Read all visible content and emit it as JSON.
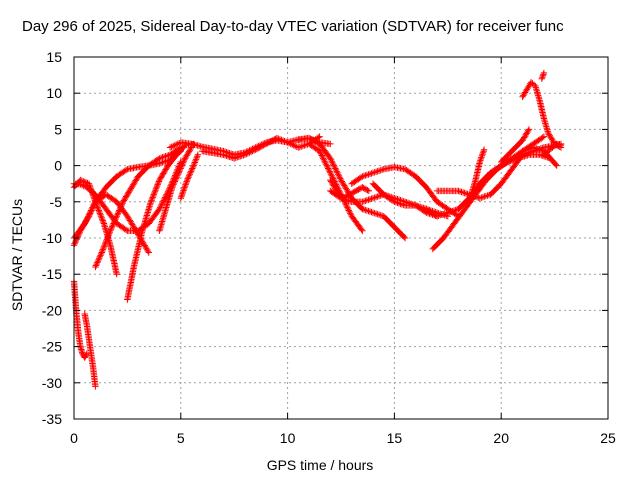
{
  "chart_data": {
    "type": "scatter",
    "title": "Day 296 of 2025, Sidereal Day-to-day VTEC variation (SDTVAR) for receiver func",
    "xlabel": "GPS time / hours",
    "ylabel": "SDTVAR / TECUs",
    "xlim": [
      0,
      25
    ],
    "ylim": [
      -35,
      15
    ],
    "xticks": [
      0,
      5,
      10,
      15,
      20,
      25
    ],
    "yticks": [
      -35,
      -30,
      -25,
      -20,
      -15,
      -10,
      -5,
      0,
      5,
      10,
      15
    ],
    "grid": true,
    "marker": "+",
    "color": "#ff0000",
    "series": [
      {
        "name": "s1",
        "x": [
          0.0,
          0.1,
          0.2,
          0.3,
          0.4,
          0.5,
          0.6
        ],
        "y": [
          -16,
          -20,
          -23,
          -25,
          -26,
          -26.5,
          -26
        ]
      },
      {
        "name": "s2",
        "x": [
          0.5,
          0.6,
          0.7,
          0.8,
          0.9,
          1.0
        ],
        "y": [
          -20.5,
          -22,
          -24,
          -26,
          -28,
          -30.5
        ]
      },
      {
        "name": "s3",
        "x": [
          0.0,
          0.3,
          0.7,
          1.0,
          1.4,
          1.7,
          2.0
        ],
        "y": [
          -3,
          -2,
          -2.5,
          -5,
          -8,
          -11,
          -15
        ]
      },
      {
        "name": "s4",
        "x": [
          0.0,
          0.5,
          1.0,
          1.5,
          2.0,
          2.5,
          3.0,
          3.5
        ],
        "y": [
          -10,
          -8,
          -5,
          -4,
          -5,
          -7,
          -9.5,
          -12
        ]
      },
      {
        "name": "s5",
        "x": [
          0.0,
          0.3,
          0.6,
          1.0,
          1.5,
          2.0,
          2.5,
          3.0,
          3.5,
          4.0,
          4.5,
          5.0
        ],
        "y": [
          -2.5,
          -2.6,
          -3,
          -4,
          -6,
          -8,
          -9,
          -9,
          -8,
          -6,
          -3,
          0.5
        ]
      },
      {
        "name": "s6",
        "x": [
          0.0,
          0.3,
          0.7,
          1.0,
          1.5,
          2.0,
          2.5,
          3.0,
          3.5,
          4.0,
          4.5,
          5.0
        ],
        "y": [
          -11,
          -9,
          -7,
          -5,
          -3,
          -1.5,
          -0.5,
          -0.2,
          0,
          0.3,
          0.8,
          2
        ]
      },
      {
        "name": "s7",
        "x": [
          1.0,
          1.3,
          1.7,
          2.0,
          2.3,
          2.7,
          3.0,
          3.5,
          4.0,
          4.5,
          5.0
        ],
        "y": [
          -14,
          -12,
          -9,
          -7,
          -5,
          -3,
          -1.5,
          0,
          1,
          1.5,
          2.5
        ]
      },
      {
        "name": "s8",
        "x": [
          2.5,
          2.8,
          3.2,
          3.6,
          4.0,
          4.4,
          4.8,
          5.2,
          5.6
        ],
        "y": [
          -18.5,
          -14,
          -9,
          -5,
          -2,
          0,
          1.5,
          2.8,
          3
        ]
      },
      {
        "name": "s9",
        "x": [
          4.0,
          4.3,
          4.6,
          4.9,
          5.2,
          5.5
        ],
        "y": [
          -9,
          -6,
          -3,
          -1,
          1,
          2.5
        ]
      },
      {
        "name": "s10",
        "x": [
          5.0,
          5.3,
          5.6,
          5.8
        ],
        "y": [
          -4.5,
          -2,
          0,
          1.5
        ]
      },
      {
        "name": "s11",
        "x": [
          4.5,
          5.0,
          5.5,
          6.0,
          6.5,
          7.0,
          7.5,
          8.0,
          8.5,
          9.0,
          9.5,
          10.0,
          10.5,
          11.0,
          11.5,
          12.0
        ],
        "y": [
          2.5,
          3.2,
          3.0,
          2.6,
          2.3,
          2.0,
          1.5,
          1.8,
          2.5,
          3.2,
          3.5,
          3.2,
          3.6,
          3.8,
          3.2,
          3.0
        ]
      },
      {
        "name": "s12",
        "x": [
          6.0,
          7.0,
          7.5,
          8.0,
          8.5,
          9.0,
          9.5,
          10.0,
          10.5,
          11.0,
          11.5
        ],
        "y": [
          2.0,
          1.5,
          1.0,
          1.5,
          2.2,
          3.0,
          3.8,
          3.2,
          2.5,
          3.0,
          4.0
        ]
      },
      {
        "name": "s13",
        "x": [
          10.5,
          11.0,
          11.5,
          12.0,
          12.5,
          13.0,
          13.5,
          14.0,
          14.5,
          15.0,
          15.5
        ],
        "y": [
          3.5,
          3.8,
          3.0,
          1.0,
          -2.0,
          -4.5,
          -6.0,
          -6.5,
          -7.0,
          -8.5,
          -10.0
        ]
      },
      {
        "name": "s14",
        "x": [
          11.0,
          11.5,
          12.0,
          12.5,
          13.0,
          13.5
        ],
        "y": [
          3.0,
          2.0,
          -1.0,
          -4.0,
          -7.0,
          -9.0
        ]
      },
      {
        "name": "s15",
        "x": [
          12.0,
          12.3,
          12.6,
          12.9,
          13.2,
          13.5,
          13.8
        ],
        "y": [
          -2.0,
          -3.5,
          -4.5,
          -4.0,
          -3.5,
          -3.0,
          -3.5
        ]
      },
      {
        "name": "s16",
        "x": [
          12.0,
          12.5,
          13.0,
          13.5,
          14.0,
          14.5,
          15.0,
          15.5,
          16.0,
          16.5,
          17.0
        ],
        "y": [
          -3.5,
          -4.5,
          -5.0,
          -5.0,
          -4.5,
          -4.0,
          -4.5,
          -5.0,
          -5.5,
          -6.5,
          -7.0
        ]
      },
      {
        "name": "s17",
        "x": [
          13.0,
          13.5,
          14.0,
          14.5,
          15.0,
          15.5,
          16.0,
          16.5,
          17.0,
          17.5,
          18.0
        ],
        "y": [
          -2.5,
          -1.5,
          -1.0,
          -0.5,
          -0.2,
          -0.5,
          -1.5,
          -3.0,
          -5.0,
          -6.0,
          -7.0
        ]
      },
      {
        "name": "s18",
        "x": [
          14.0,
          14.5,
          15.0,
          15.5,
          16.0,
          16.5,
          17.0,
          17.5
        ],
        "y": [
          -2.5,
          -4.0,
          -5.0,
          -5.5,
          -5.5,
          -6.0,
          -6.5,
          -7.0
        ]
      },
      {
        "name": "s19",
        "x": [
          16.5,
          17.0,
          17.5,
          18.0,
          18.5,
          19.0,
          19.5,
          20.0,
          20.5,
          21.0,
          21.5,
          22.0,
          22.5,
          22.8
        ],
        "y": [
          -6.0,
          -7.0,
          -6.5,
          -6.0,
          -4.5,
          -2.5,
          -1.0,
          0.0,
          0.8,
          1.5,
          2.0,
          2.5,
          2.8,
          3.0
        ]
      },
      {
        "name": "s20",
        "x": [
          16.8,
          17.3,
          17.8,
          18.3,
          18.8,
          19.3,
          19.8,
          20.3,
          20.8,
          21.3,
          21.8,
          22.3
        ],
        "y": [
          -11.5,
          -10.0,
          -8.0,
          -6.0,
          -4.0,
          -2.0,
          -0.5,
          0.5,
          1.0,
          1.5,
          1.5,
          1.0
        ]
      },
      {
        "name": "s21",
        "x": [
          17.0,
          17.5,
          18.0,
          18.5,
          19.0,
          19.5,
          20.0,
          20.5,
          21.0
        ],
        "y": [
          -3.5,
          -3.5,
          -3.5,
          -4.0,
          -4.5,
          -4.0,
          -2.5,
          -0.5,
          1.5
        ]
      },
      {
        "name": "s22",
        "x": [
          18.5,
          18.8,
          19.0,
          19.2
        ],
        "y": [
          -5.0,
          -2.0,
          0.5,
          2.2
        ]
      },
      {
        "name": "s23",
        "x": [
          19.0,
          19.5,
          20.0,
          20.5,
          21.0,
          21.5,
          22.0
        ],
        "y": [
          -2.5,
          -1.0,
          0.0,
          1.0,
          2.0,
          3.0,
          4.0
        ]
      },
      {
        "name": "s24",
        "x": [
          20.0,
          20.5,
          21.0,
          21.3
        ],
        "y": [
          0.5,
          2.0,
          3.5,
          5.0
        ]
      },
      {
        "name": "s25",
        "x": [
          21.0,
          21.2,
          21.4,
          21.6,
          21.8,
          22.0,
          22.2,
          22.5,
          22.8
        ],
        "y": [
          9.5,
          10.5,
          11.5,
          11.0,
          9.0,
          6.5,
          4.5,
          3.0,
          2.5
        ]
      },
      {
        "name": "s26",
        "x": [
          21.9,
          22.0
        ],
        "y": [
          12.0,
          12.8
        ]
      },
      {
        "name": "s27",
        "x": [
          21.0,
          21.5,
          22.0,
          22.3,
          22.6
        ],
        "y": [
          2.0,
          2.5,
          2.0,
          1.0,
          0.0
        ]
      },
      {
        "name": "s28",
        "x": [
          22.0,
          22.2,
          22.4,
          22.6,
          22.8
        ],
        "y": [
          1.5,
          2.0,
          2.5,
          3.0,
          2.8
        ]
      }
    ]
  }
}
